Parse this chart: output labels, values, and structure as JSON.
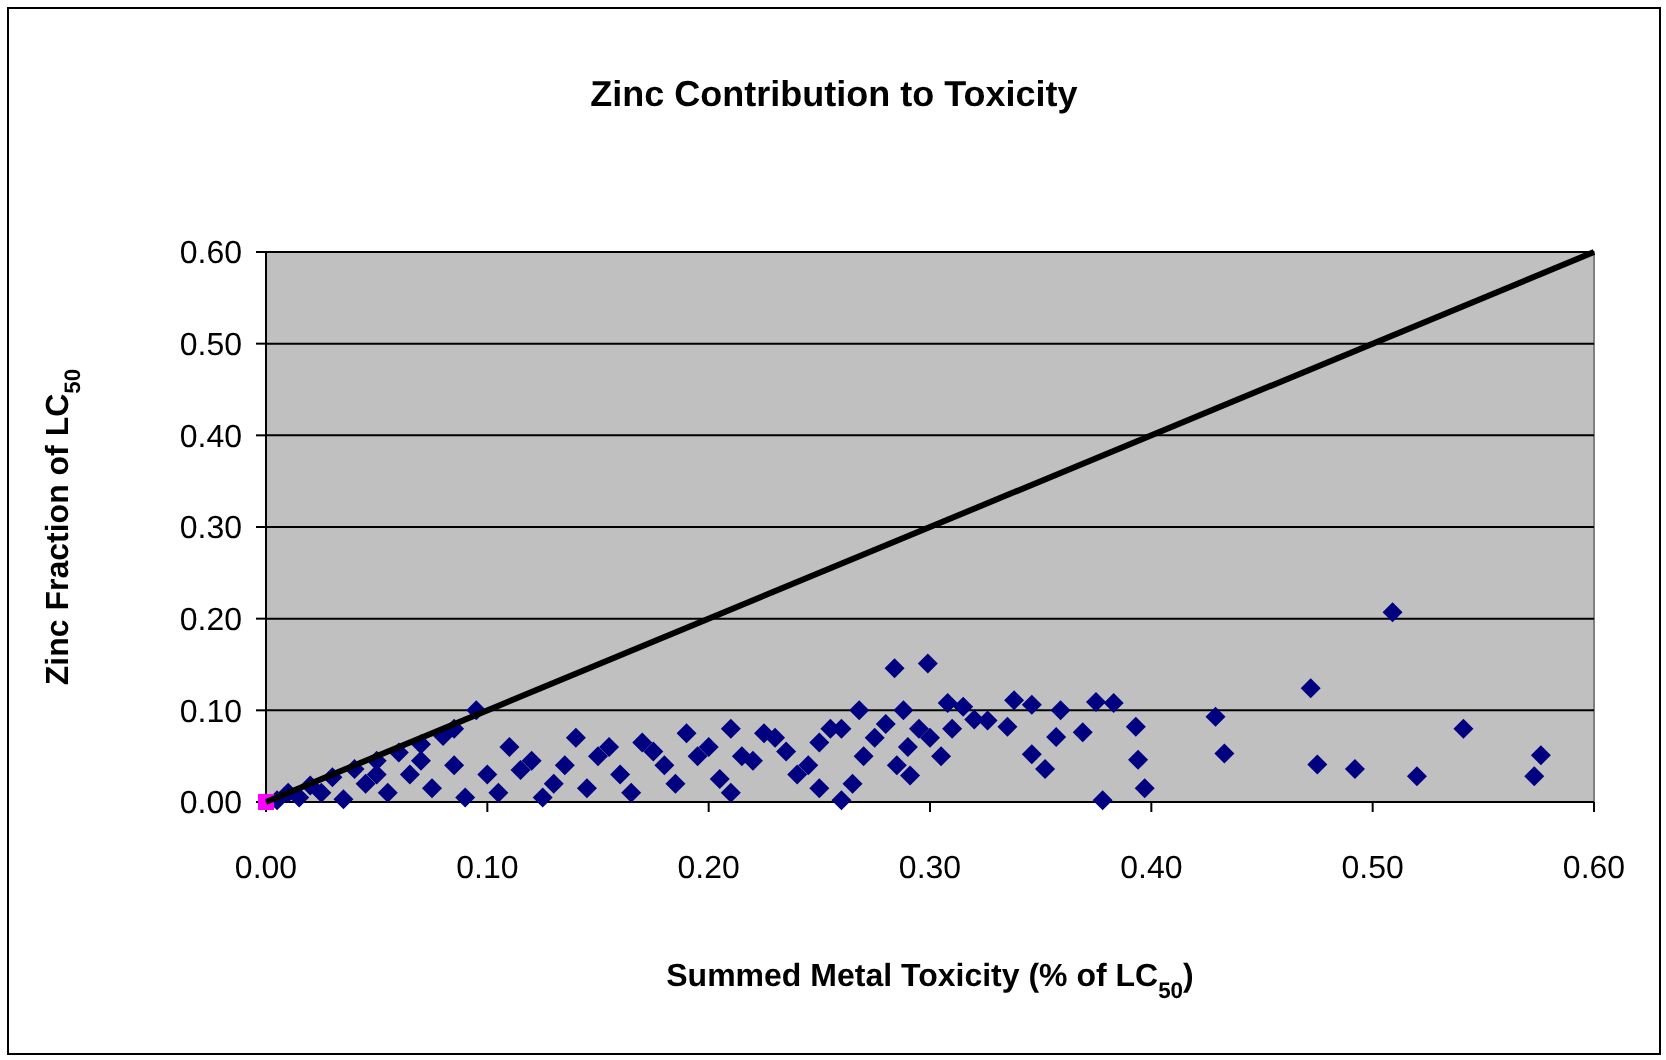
{
  "chart_data": {
    "type": "scatter",
    "title": "Zinc  Contribution to Toxicity",
    "xlabel": "Summed Metal Toxicity (% of LC$_{50}$)",
    "ylabel": "Zinc Fraction of LC$_{50}$",
    "xlim": [
      0,
      0.6
    ],
    "ylim": [
      0,
      0.6
    ],
    "xticks": [
      {
        "value": 0,
        "label": "0.00"
      },
      {
        "value": 0.1,
        "label": "0.10"
      },
      {
        "value": 0.2,
        "label": "0.20"
      },
      {
        "value": 0.3,
        "label": "0.30"
      },
      {
        "value": 0.4,
        "label": "0.40"
      },
      {
        "value": 0.5,
        "label": "0.50"
      },
      {
        "value": 0.6,
        "label": "0.60"
      }
    ],
    "yticks": [
      {
        "value": 0,
        "label": "0.00"
      },
      {
        "value": 0.1,
        "label": "0.10"
      },
      {
        "value": 0.2,
        "label": "0.20"
      },
      {
        "value": 0.3,
        "label": "0.30"
      },
      {
        "value": 0.4,
        "label": "0.40"
      },
      {
        "value": 0.5,
        "label": "0.50"
      },
      {
        "value": 0.6,
        "label": "0.60"
      }
    ],
    "grid": "y",
    "series": [
      {
        "marker": "diamond",
        "color": "#000080",
        "x": [
          0.01,
          0.02,
          0.03,
          0.04,
          0.05,
          0.06,
          0.07,
          0.08,
          0.095,
          0.085,
          0.005,
          0.015,
          0.025,
          0.035,
          0.045,
          0.055,
          0.065,
          0.075,
          0.085,
          0.09,
          0.05,
          0.07,
          0.1,
          0.11,
          0.12,
          0.13,
          0.14,
          0.15,
          0.16,
          0.17,
          0.18,
          0.19,
          0.105,
          0.125,
          0.145,
          0.165,
          0.185,
          0.195,
          0.115,
          0.155,
          0.175,
          0.135,
          0.2,
          0.21,
          0.22,
          0.23,
          0.24,
          0.25,
          0.26,
          0.27,
          0.28,
          0.29,
          0.205,
          0.215,
          0.225,
          0.235,
          0.245,
          0.255,
          0.265,
          0.275,
          0.285,
          0.295,
          0.21,
          0.25,
          0.3,
          0.31,
          0.32,
          0.305,
          0.284,
          0.299,
          0.338,
          0.346,
          0.359,
          0.375,
          0.383,
          0.393,
          0.394,
          0.397,
          0.378,
          0.369,
          0.357,
          0.346,
          0.352,
          0.335,
          0.326,
          0.308,
          0.315,
          0.291,
          0.26,
          0.268,
          0.288,
          0.429,
          0.433,
          0.472,
          0.475,
          0.492,
          0.509,
          0.52,
          0.541,
          0.576,
          0.573
        ],
        "values": [
          0.01,
          0.018,
          0.027,
          0.036,
          0.045,
          0.054,
          0.063,
          0.072,
          0.1,
          0.08,
          0.002,
          0.005,
          0.01,
          0.003,
          0.02,
          0.01,
          0.03,
          0.015,
          0.04,
          0.005,
          0.03,
          0.045,
          0.03,
          0.06,
          0.045,
          0.02,
          0.07,
          0.05,
          0.03,
          0.065,
          0.04,
          0.075,
          0.01,
          0.005,
          0.015,
          0.01,
          0.02,
          0.05,
          0.035,
          0.06,
          0.055,
          0.04,
          0.06,
          0.08,
          0.045,
          0.07,
          0.03,
          0.065,
          0.08,
          0.05,
          0.085,
          0.06,
          0.025,
          0.05,
          0.075,
          0.055,
          0.04,
          0.08,
          0.02,
          0.07,
          0.04,
          0.08,
          0.01,
          0.015,
          0.07,
          0.08,
          0.09,
          0.05,
          0.146,
          0.151,
          0.111,
          0.106,
          0.1,
          0.109,
          0.108,
          0.082,
          0.046,
          0.015,
          0.002,
          0.076,
          0.071,
          0.052,
          0.036,
          0.082,
          0.089,
          0.108,
          0.104,
          0.029,
          0.002,
          0.1,
          0.1,
          0.093,
          0.053,
          0.124,
          0.041,
          0.036,
          0.207,
          0.028,
          0.08,
          0.051,
          0.028
        ]
      },
      {
        "marker": "square",
        "color": "#ff00ff",
        "x": [
          0
        ],
        "values": [
          0
        ]
      },
      {
        "type": "line",
        "marker": "none",
        "line_style": "solid",
        "color": "#000000",
        "x": [
          0,
          0.6
        ],
        "values": [
          0,
          0.6
        ]
      }
    ]
  }
}
